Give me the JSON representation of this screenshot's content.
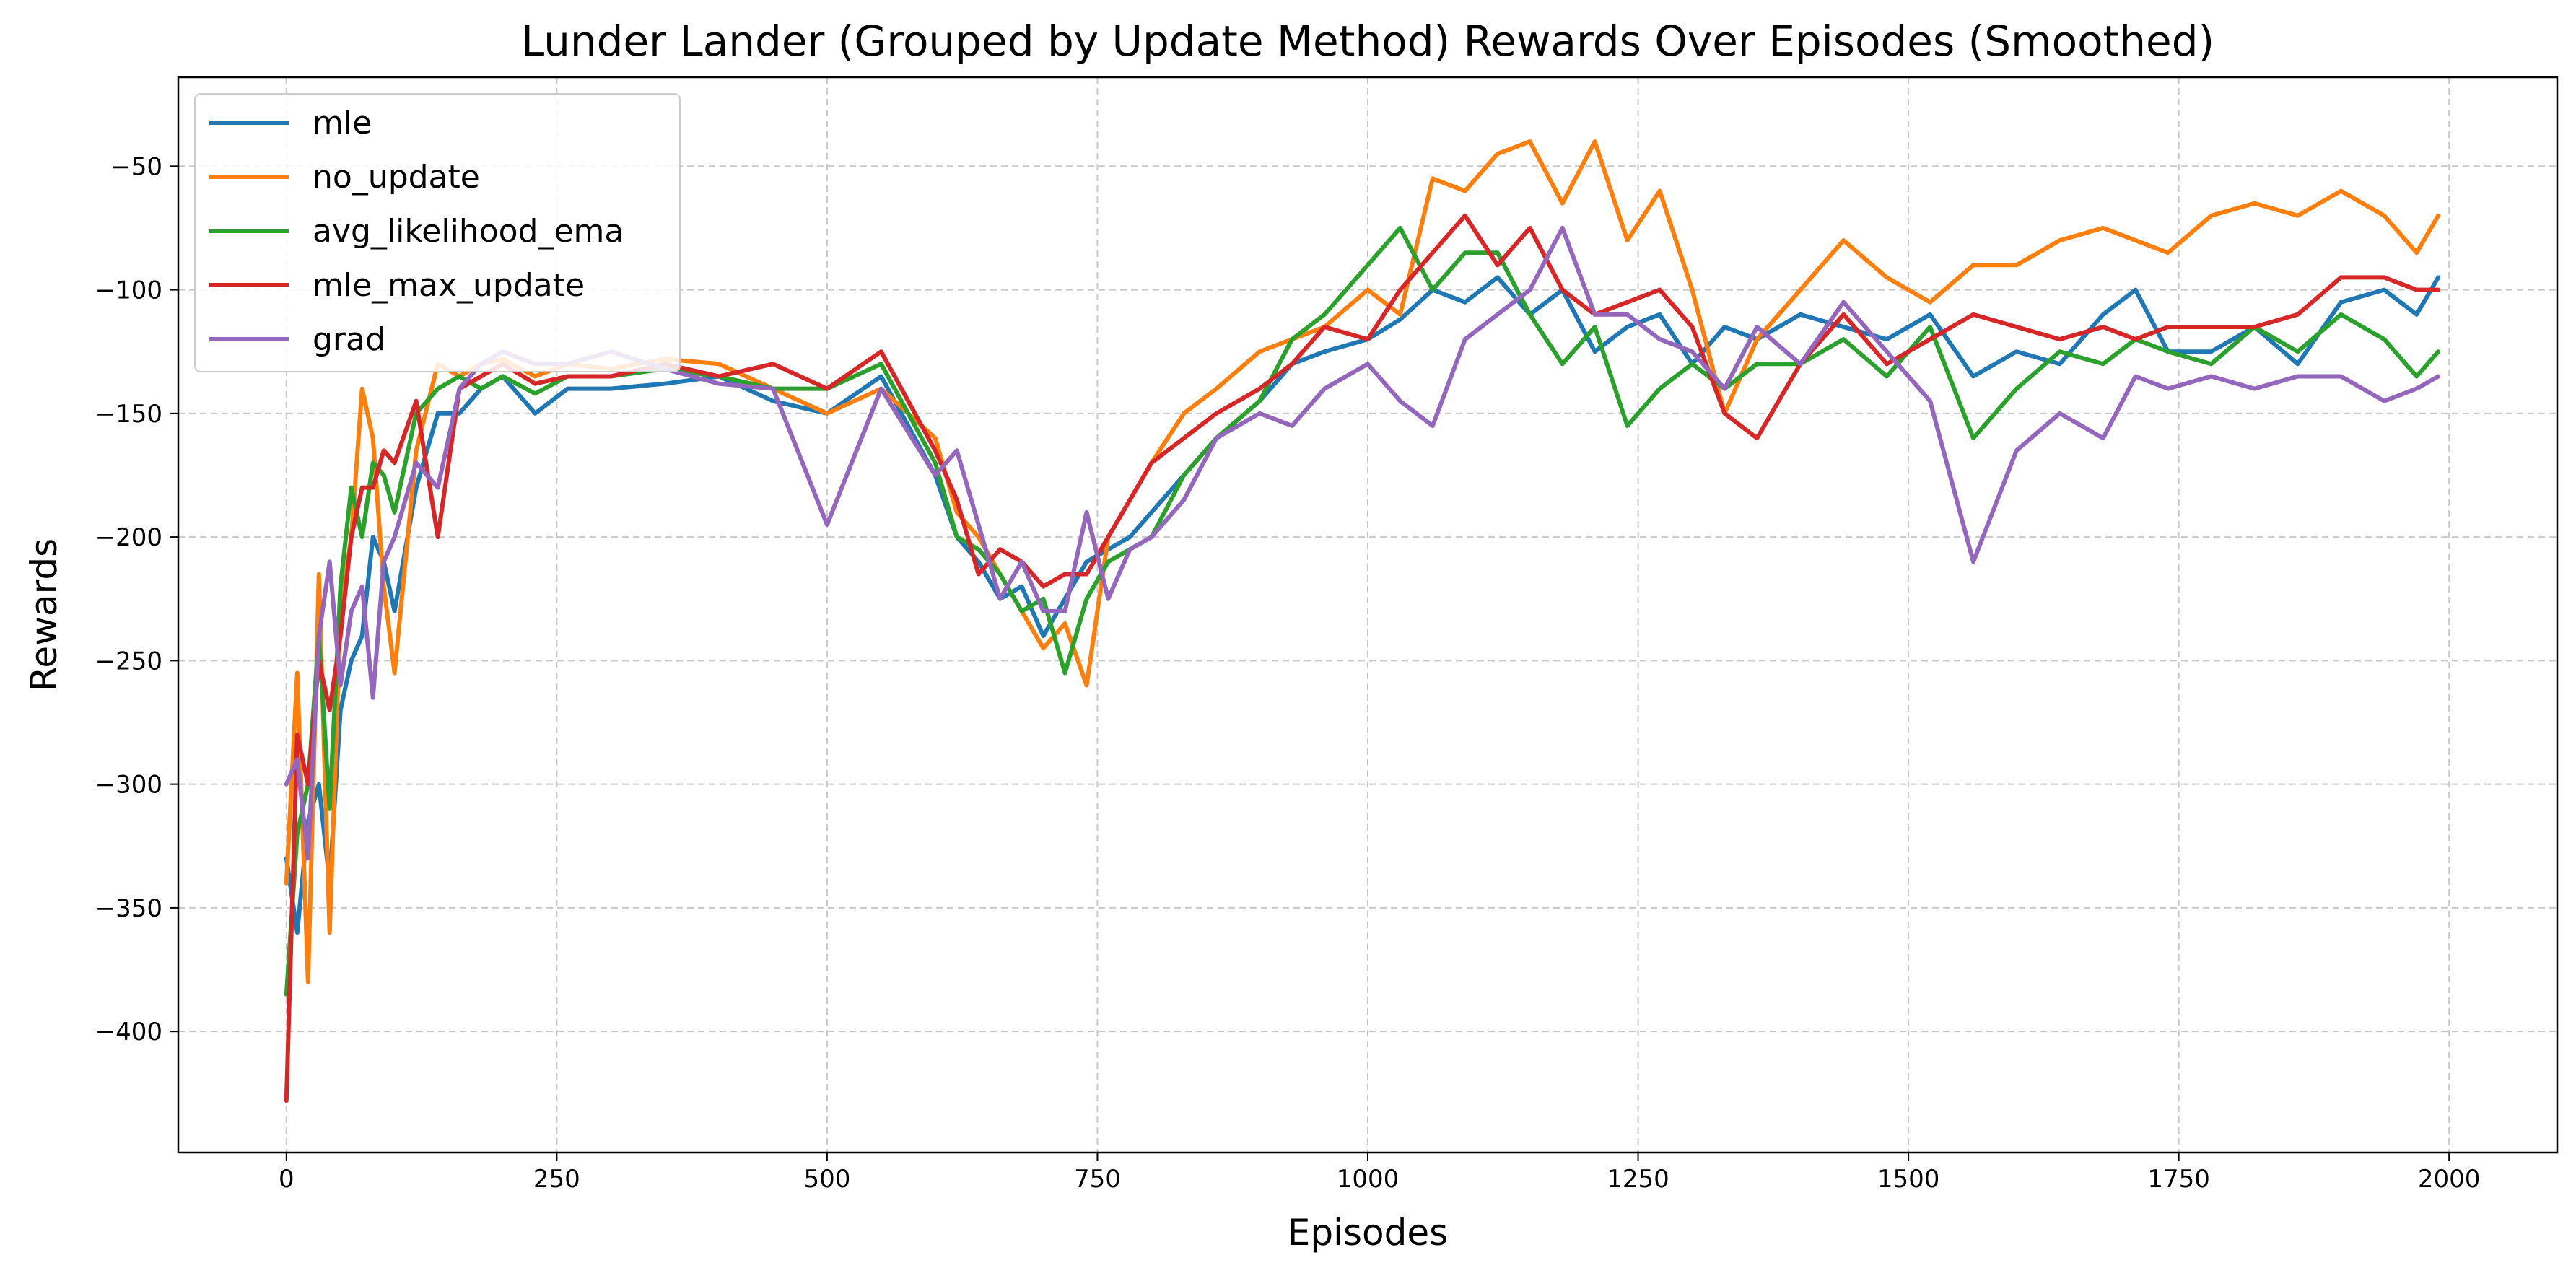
{
  "chart_data": {
    "type": "line",
    "title": "Lunder Lander (Grouped by Update Method) Rewards Over Episodes (Smoothed)",
    "xlabel": "Episodes",
    "ylabel": "Rewards",
    "xlim": [
      -100,
      2100
    ],
    "ylim": [
      -449,
      -14
    ],
    "xticks": [
      0,
      250,
      500,
      750,
      1000,
      1250,
      1500,
      1750,
      2000
    ],
    "xtick_labels": [
      "0",
      "250",
      "500",
      "750",
      "1000",
      "1250",
      "1500",
      "1750",
      "2000"
    ],
    "yticks": [
      -400,
      -350,
      -300,
      -250,
      -200,
      -150,
      -100,
      -50
    ],
    "ytick_labels": [
      "−400",
      "−350",
      "−300",
      "−250",
      "−200",
      "−150",
      "−100",
      "−50"
    ],
    "grid": true,
    "legend_position": "top-left",
    "series": [
      {
        "name": "mle",
        "color": "#1f77b4",
        "x": [
          0,
          10,
          20,
          30,
          40,
          50,
          60,
          70,
          80,
          90,
          100,
          120,
          140,
          160,
          180,
          200,
          230,
          260,
          300,
          350,
          400,
          450,
          500,
          550,
          600,
          620,
          640,
          660,
          680,
          700,
          720,
          740,
          760,
          780,
          800,
          830,
          860,
          900,
          930,
          960,
          1000,
          1030,
          1060,
          1090,
          1120,
          1150,
          1180,
          1210,
          1240,
          1270,
          1300,
          1330,
          1360,
          1400,
          1440,
          1480,
          1520,
          1560,
          1600,
          1640,
          1680,
          1710,
          1740,
          1780,
          1820,
          1860,
          1900,
          1940,
          1970,
          1990
        ],
        "y": [
          -330,
          -360,
          -315,
          -300,
          -340,
          -270,
          -250,
          -240,
          -200,
          -210,
          -230,
          -180,
          -150,
          -150,
          -140,
          -135,
          -150,
          -140,
          -140,
          -138,
          -135,
          -145,
          -150,
          -135,
          -175,
          -200,
          -210,
          -225,
          -220,
          -240,
          -225,
          -210,
          -205,
          -200,
          -190,
          -175,
          -160,
          -145,
          -130,
          -125,
          -120,
          -112,
          -100,
          -105,
          -95,
          -110,
          -100,
          -125,
          -115,
          -110,
          -130,
          -115,
          -120,
          -110,
          -115,
          -120,
          -110,
          -135,
          -125,
          -130,
          -110,
          -100,
          -125,
          -125,
          -115,
          -130,
          -105,
          -100,
          -110,
          -95
        ]
      },
      {
        "name": "no_update",
        "color": "#ff7f0e",
        "x": [
          0,
          10,
          20,
          30,
          40,
          50,
          60,
          70,
          80,
          90,
          100,
          120,
          140,
          160,
          180,
          200,
          230,
          260,
          300,
          350,
          400,
          450,
          500,
          550,
          600,
          620,
          640,
          660,
          680,
          700,
          720,
          740,
          760,
          780,
          800,
          830,
          860,
          900,
          930,
          960,
          1000,
          1030,
          1060,
          1090,
          1120,
          1150,
          1180,
          1210,
          1240,
          1270,
          1300,
          1330,
          1360,
          1400,
          1440,
          1480,
          1520,
          1560,
          1600,
          1640,
          1680,
          1710,
          1740,
          1780,
          1820,
          1860,
          1900,
          1940,
          1970,
          1990
        ],
        "y": [
          -340,
          -255,
          -380,
          -215,
          -360,
          -230,
          -200,
          -140,
          -160,
          -220,
          -255,
          -165,
          -130,
          -135,
          -130,
          -128,
          -135,
          -130,
          -132,
          -128,
          -130,
          -140,
          -150,
          -140,
          -160,
          -190,
          -200,
          -215,
          -230,
          -245,
          -235,
          -260,
          -200,
          -185,
          -170,
          -150,
          -140,
          -125,
          -120,
          -115,
          -100,
          -110,
          -55,
          -60,
          -45,
          -40,
          -65,
          -40,
          -80,
          -60,
          -100,
          -150,
          -120,
          -100,
          -80,
          -95,
          -105,
          -90,
          -90,
          -80,
          -75,
          -80,
          -85,
          -70,
          -65,
          -70,
          -60,
          -70,
          -85,
          -70
        ]
      },
      {
        "name": "avg_likelihood_ema",
        "color": "#2ca02c",
        "x": [
          0,
          10,
          20,
          30,
          40,
          50,
          60,
          70,
          80,
          90,
          100,
          120,
          140,
          160,
          180,
          200,
          230,
          260,
          300,
          350,
          400,
          450,
          500,
          550,
          600,
          620,
          640,
          660,
          680,
          700,
          720,
          740,
          760,
          780,
          800,
          830,
          860,
          900,
          930,
          960,
          1000,
          1030,
          1060,
          1090,
          1120,
          1150,
          1180,
          1210,
          1240,
          1270,
          1300,
          1330,
          1360,
          1400,
          1440,
          1480,
          1520,
          1560,
          1600,
          1640,
          1680,
          1710,
          1740,
          1780,
          1820,
          1860,
          1900,
          1940,
          1970,
          1990
        ],
        "y": [
          -385,
          -320,
          -300,
          -240,
          -310,
          -220,
          -180,
          -200,
          -170,
          -175,
          -190,
          -150,
          -140,
          -135,
          -140,
          -135,
          -142,
          -135,
          -135,
          -132,
          -135,
          -140,
          -140,
          -130,
          -170,
          -200,
          -205,
          -215,
          -230,
          -225,
          -255,
          -225,
          -210,
          -205,
          -200,
          -175,
          -160,
          -145,
          -120,
          -110,
          -90,
          -75,
          -100,
          -85,
          -85,
          -110,
          -130,
          -115,
          -155,
          -140,
          -130,
          -140,
          -130,
          -130,
          -120,
          -135,
          -115,
          -160,
          -140,
          -125,
          -130,
          -120,
          -125,
          -130,
          -115,
          -125,
          -110,
          -120,
          -135,
          -125
        ]
      },
      {
        "name": "mle_max_update",
        "color": "#d62728",
        "x": [
          0,
          10,
          20,
          30,
          40,
          50,
          60,
          70,
          80,
          90,
          100,
          120,
          140,
          160,
          180,
          200,
          230,
          260,
          300,
          350,
          400,
          450,
          500,
          550,
          600,
          620,
          640,
          660,
          680,
          700,
          720,
          740,
          760,
          780,
          800,
          830,
          860,
          900,
          930,
          960,
          1000,
          1030,
          1060,
          1090,
          1120,
          1150,
          1180,
          1210,
          1240,
          1270,
          1300,
          1330,
          1360,
          1400,
          1440,
          1480,
          1520,
          1560,
          1600,
          1640,
          1680,
          1710,
          1740,
          1780,
          1820,
          1860,
          1900,
          1940,
          1970,
          1990
        ],
        "y": [
          -428,
          -280,
          -300,
          -250,
          -270,
          -240,
          -200,
          -180,
          -180,
          -165,
          -170,
          -145,
          -200,
          -140,
          -135,
          -130,
          -138,
          -135,
          -135,
          -130,
          -135,
          -130,
          -140,
          -125,
          -165,
          -185,
          -215,
          -205,
          -210,
          -220,
          -215,
          -215,
          -200,
          -185,
          -170,
          -160,
          -150,
          -140,
          -130,
          -115,
          -120,
          -100,
          -85,
          -70,
          -90,
          -75,
          -100,
          -110,
          -105,
          -100,
          -115,
          -150,
          -160,
          -130,
          -110,
          -130,
          -120,
          -110,
          -115,
          -120,
          -115,
          -120,
          -115,
          -115,
          -115,
          -110,
          -95,
          -95,
          -100,
          -100
        ]
      },
      {
        "name": "grad",
        "color": "#9467bd",
        "x": [
          0,
          10,
          20,
          30,
          40,
          50,
          60,
          70,
          80,
          90,
          100,
          120,
          140,
          160,
          180,
          200,
          230,
          260,
          300,
          350,
          400,
          450,
          500,
          550,
          600,
          620,
          640,
          660,
          680,
          700,
          720,
          740,
          760,
          780,
          800,
          830,
          860,
          900,
          930,
          960,
          1000,
          1030,
          1060,
          1090,
          1120,
          1150,
          1180,
          1210,
          1240,
          1270,
          1300,
          1330,
          1360,
          1400,
          1440,
          1480,
          1520,
          1560,
          1600,
          1640,
          1680,
          1710,
          1740,
          1780,
          1820,
          1860,
          1900,
          1940,
          1970,
          1990
        ],
        "y": [
          -300,
          -290,
          -330,
          -240,
          -210,
          -260,
          -230,
          -220,
          -265,
          -210,
          -200,
          -170,
          -180,
          -140,
          -130,
          -125,
          -130,
          -130,
          -125,
          -132,
          -138,
          -140,
          -195,
          -140,
          -175,
          -165,
          -195,
          -225,
          -210,
          -230,
          -230,
          -190,
          -225,
          -205,
          -200,
          -185,
          -160,
          -150,
          -155,
          -140,
          -130,
          -145,
          -155,
          -120,
          -110,
          -100,
          -75,
          -110,
          -110,
          -120,
          -125,
          -140,
          -115,
          -130,
          -105,
          -125,
          -145,
          -210,
          -165,
          -150,
          -160,
          -135,
          -140,
          -135,
          -140,
          -135,
          -135,
          -145,
          -140,
          -135
        ]
      }
    ]
  }
}
